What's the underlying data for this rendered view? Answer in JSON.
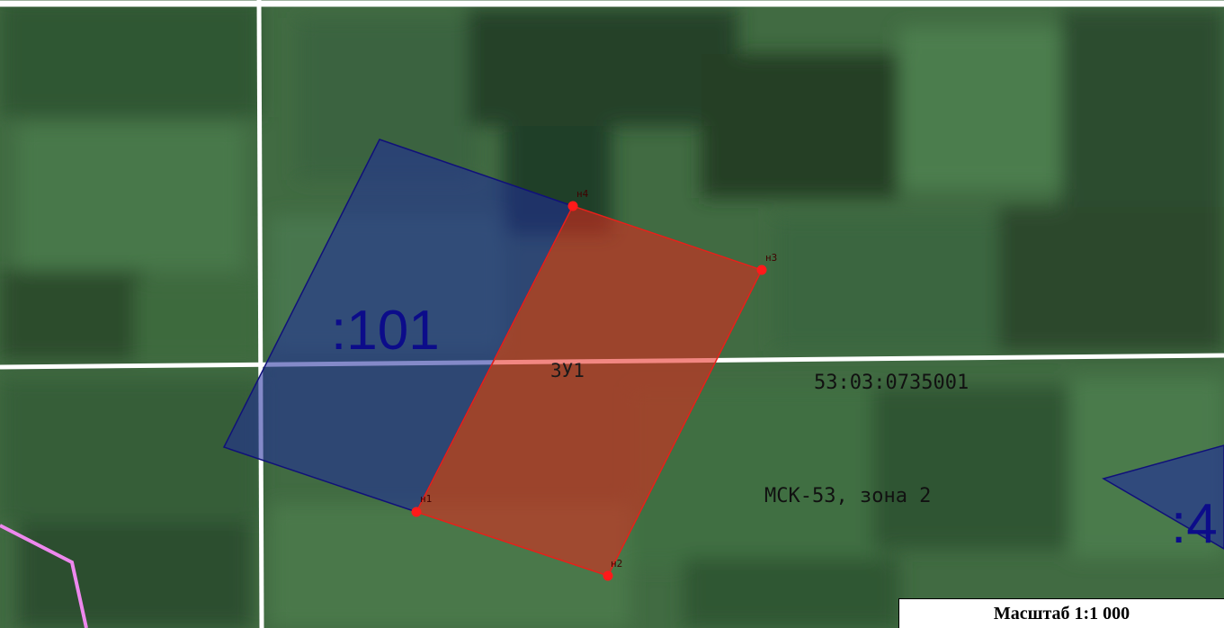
{
  "map": {
    "parcel_existing_label": ":101",
    "parcel_existing_color": "#1a1a8c",
    "parcel_partial_label": ":4",
    "new_parcel_label": "ЗУ1",
    "new_parcel_color": "#e8201a",
    "quarter_number": "53:03:0735001",
    "coordinate_system": "МСК-53, зона 2",
    "quarter_boundary_color": "#ffffff",
    "other_boundary_color": "#ee88ee",
    "points": [
      {
        "id": "n1",
        "label": "н1"
      },
      {
        "id": "n2",
        "label": "н2"
      },
      {
        "id": "n3",
        "label": "н3"
      },
      {
        "id": "n4",
        "label": "н4"
      }
    ]
  },
  "scale": {
    "label": "Масштаб 1:1 000"
  }
}
